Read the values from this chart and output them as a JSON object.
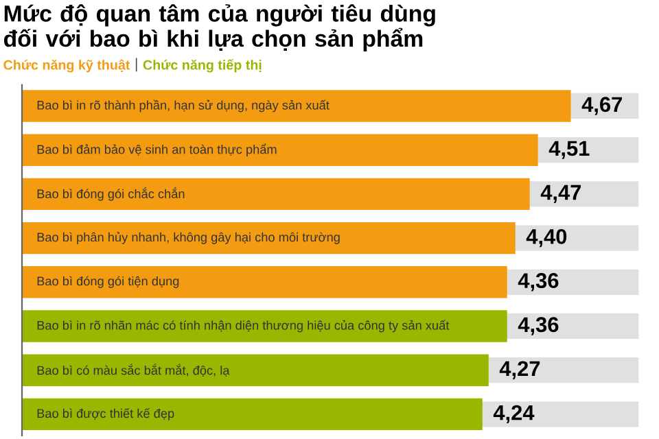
{
  "chart_data": {
    "type": "bar",
    "orientation": "horizontal",
    "title": "Mức độ quan tâm của người tiêu dùng đối với bao bì khi lựa chọn sản phẩm",
    "categories": [
      "Bao bì in rõ thành phần, hạn sử dụng, ngày sản xuất",
      "Bao bì đảm bảo vệ sinh an toàn thực phẩm",
      "Bao bì đóng gói chắc chắn",
      "Bao bì phân hủy nhanh, không gây hại cho môi trường",
      "Bao bì đóng gói tiện dụng",
      "Bao bì in rõ nhãn mác có tính nhận diện thương hiệu của công ty sản xuất",
      "Bao bì có màu sắc bắt mắt, độc, lạ",
      "Bao bì được thiết kế đẹp"
    ],
    "series": [
      {
        "name": "Chức năng kỹ thuật",
        "color": "#f39c12",
        "values": [
          4.67,
          4.51,
          4.47,
          4.4,
          4.36,
          null,
          null,
          null
        ],
        "value_labels": [
          "4,67",
          "4,51",
          "4,47",
          "4,40",
          "4,36",
          null,
          null,
          null
        ]
      },
      {
        "name": "Chức năng tiếp thị",
        "color": "#99b700",
        "values": [
          null,
          null,
          null,
          null,
          null,
          4.36,
          4.27,
          4.24
        ],
        "value_labels": [
          null,
          null,
          null,
          null,
          null,
          "4,36",
          "4,27",
          "4,24"
        ]
      }
    ],
    "xlim": [
      2,
      5
    ],
    "legend": "top left",
    "grid": false
  }
}
